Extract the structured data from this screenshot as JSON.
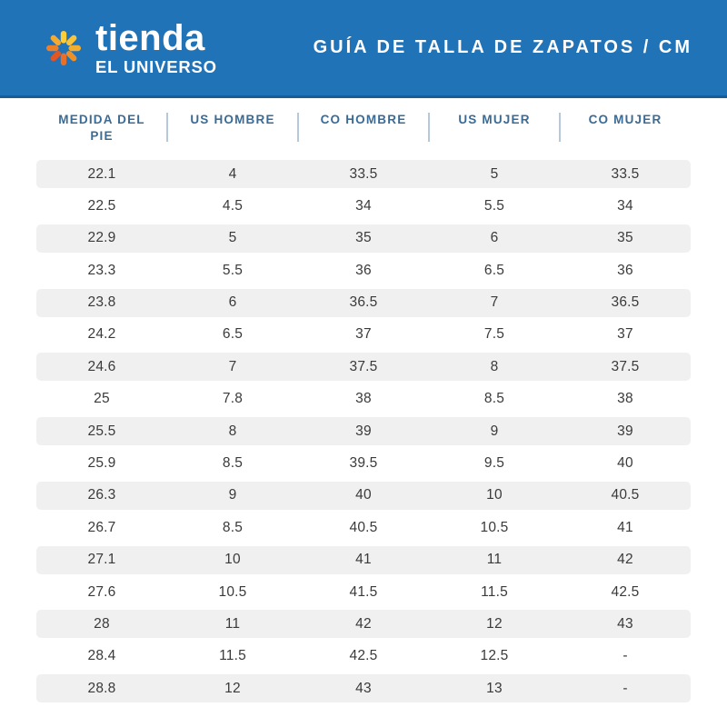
{
  "header": {
    "brand_name": "tienda",
    "brand_subtitle": "EL UNIVERSO",
    "title": "GUÍA DE TALLA DE ZAPATOS  / CM"
  },
  "colors": {
    "banner_bg": "#2173B8",
    "banner_border": "#1A5C94",
    "header_text": "#3A6B96",
    "divider": "#B6C9DC",
    "stripe": "#F0F0F0",
    "cell_text": "#3A3A3A",
    "logo_petals": [
      "#FFCD35",
      "#FAC43A",
      "#F2AE2E",
      "#EE9026",
      "#E96F27",
      "#E35623",
      "#EC7F28",
      "#F7A92D"
    ]
  },
  "chart_data": {
    "type": "table",
    "title": "GUÍA DE TALLA DE ZAPATOS / CM",
    "columns": [
      "MEDIDA DEL PIE",
      "US HOMBRE",
      "CO HOMBRE",
      "US MUJER",
      "CO MUJER"
    ],
    "rows": [
      [
        "22.1",
        "4",
        "33.5",
        "5",
        "33.5"
      ],
      [
        "22.5",
        "4.5",
        "34",
        "5.5",
        "34"
      ],
      [
        "22.9",
        "5",
        "35",
        "6",
        "35"
      ],
      [
        "23.3",
        "5.5",
        "36",
        "6.5",
        "36"
      ],
      [
        "23.8",
        "6",
        "36.5",
        "7",
        "36.5"
      ],
      [
        "24.2",
        "6.5",
        "37",
        "7.5",
        "37"
      ],
      [
        "24.6",
        "7",
        "37.5",
        "8",
        "37.5"
      ],
      [
        "25",
        "7.8",
        "38",
        "8.5",
        "38"
      ],
      [
        "25.5",
        "8",
        "39",
        "9",
        "39"
      ],
      [
        "25.9",
        "8.5",
        "39.5",
        "9.5",
        "40"
      ],
      [
        "26.3",
        "9",
        "40",
        "10",
        "40.5"
      ],
      [
        "26.7",
        "8.5",
        "40.5",
        "10.5",
        "41"
      ],
      [
        "27.1",
        "10",
        "41",
        "11",
        "42"
      ],
      [
        "27.6",
        "10.5",
        "41.5",
        "11.5",
        "42.5"
      ],
      [
        "28",
        "11",
        "42",
        "12",
        "43"
      ],
      [
        "28.4",
        "11.5",
        "42.5",
        "12.5",
        "-"
      ],
      [
        "28.8",
        "12",
        "43",
        "13",
        "-"
      ]
    ]
  }
}
